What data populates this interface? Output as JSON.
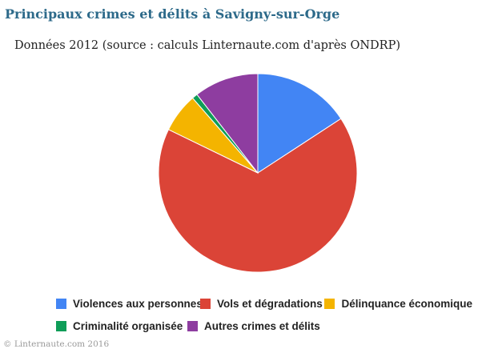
{
  "title": "Principaux crimes et délits à Savigny-sur-Orge",
  "subtitle": "Données 2012 (source : calculs Linternaute.com d'après ONDRP)",
  "footer": "© Linternaute.com 2016",
  "chart_data": {
    "type": "pie",
    "categories": [
      "Violences aux personnes",
      "Vols et dégradations",
      "Délinquance économique",
      "Criminalité organisée",
      "Autres crimes et délits"
    ],
    "values": [
      15.8,
      66.4,
      6.4,
      0.9,
      10.5
    ],
    "colors": [
      "#4285f4",
      "#db4437",
      "#f4b400",
      "#0f9d58",
      "#8e3da0"
    ],
    "legend_position": "bottom",
    "title": "Principaux crimes et délits à Savigny-sur-Orge"
  }
}
